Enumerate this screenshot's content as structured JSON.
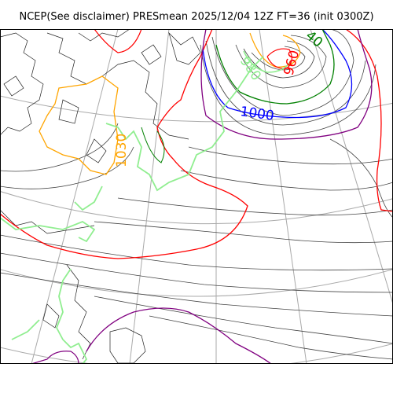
{
  "title": "NCEP(See disclaimer) PRESmean 2025/12/04 12Z FT=36 (init 0300Z)",
  "contour_labels": [
    {
      "text": "1000",
      "color": "#0000ff"
    },
    {
      "text": "960",
      "color": "#ff0000"
    },
    {
      "text": "1030",
      "color": "#ffa500"
    },
    {
      "text": "980",
      "color": "#90ee90"
    },
    {
      "text": "40",
      "color": "#008000"
    }
  ],
  "colors": {
    "grid": "#a9a9a9",
    "coast": "#000000",
    "isobar": "#444444",
    "red": "#ff0000",
    "blue": "#0000ff",
    "orange": "#ffa500",
    "lightgreen": "#90ee90",
    "green": "#008000",
    "purple": "#800080"
  }
}
